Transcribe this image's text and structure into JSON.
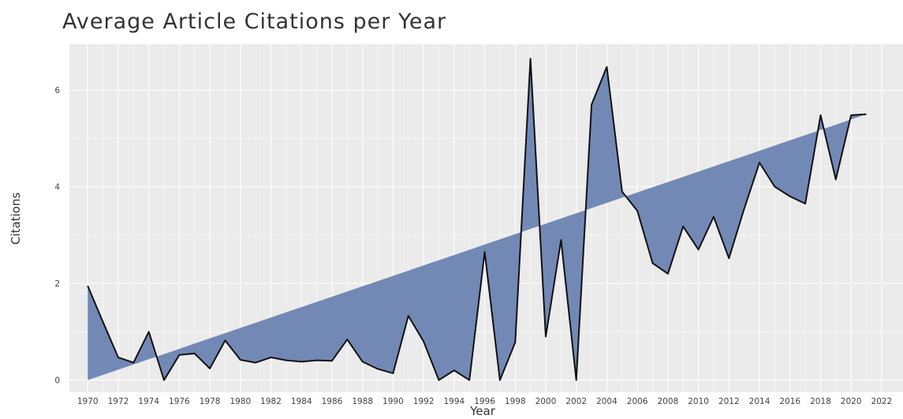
{
  "chart_data": {
    "type": "area",
    "title": "Average Article Citations per Year",
    "xlabel": "Year",
    "ylabel": "Citations",
    "xlim": [
      1968.8,
      2023.4
    ],
    "ylim": [
      -0.25,
      6.95
    ],
    "x_ticks": [
      "1970",
      "1972",
      "1974",
      "1976",
      "1978",
      "1980",
      "1982",
      "1984",
      "1986",
      "1988",
      "1990",
      "1992",
      "1994",
      "1996",
      "1998",
      "2000",
      "2002",
      "2004",
      "2006",
      "2008",
      "2010",
      "2012",
      "2014",
      "2016",
      "2018",
      "2020",
      "2022"
    ],
    "y_ticks": [
      "0",
      "2",
      "4",
      "6"
    ],
    "grid": true,
    "legend": "none",
    "colors": {
      "fill": "#7389b5",
      "line": "#111111",
      "panel": "#ebebeb",
      "grid": "#ffffff"
    },
    "x": [
      1970,
      1971,
      1972,
      1973,
      1974,
      1975,
      1976,
      1977,
      1978,
      1979,
      1980,
      1981,
      1982,
      1983,
      1984,
      1985,
      1986,
      1987,
      1988,
      1989,
      1990,
      1991,
      1992,
      1993,
      1994,
      1995,
      1996,
      1997,
      1998,
      1999,
      2000,
      2001,
      2002,
      2003,
      2004,
      2005,
      2006,
      2007,
      2008,
      2009,
      2010,
      2011,
      2012,
      2013,
      2014,
      2015,
      2016,
      2017,
      2018,
      2019,
      2020,
      2021
    ],
    "series": [
      {
        "values": [
          1.95,
          1.2,
          0.47,
          0.36,
          1.0,
          0.0,
          0.52,
          0.55,
          0.24,
          0.82,
          0.42,
          0.36,
          0.47,
          0.41,
          0.38,
          0.41,
          0.4,
          0.84,
          0.38,
          0.23,
          0.14,
          1.33,
          0.8,
          0.0,
          0.2,
          0.0,
          2.65,
          0.0,
          0.78,
          6.65,
          0.9,
          2.9,
          0.0,
          5.7,
          6.48,
          3.9,
          3.5,
          2.42,
          2.2,
          3.18,
          2.7,
          3.38,
          2.52,
          3.55,
          4.5,
          4.0,
          3.8,
          3.65,
          5.48,
          4.15,
          5.48,
          5.5
        ]
      }
    ],
    "baseline": {
      "x": [
        1970,
        2021
      ],
      "y": [
        0.0,
        5.5
      ]
    }
  }
}
